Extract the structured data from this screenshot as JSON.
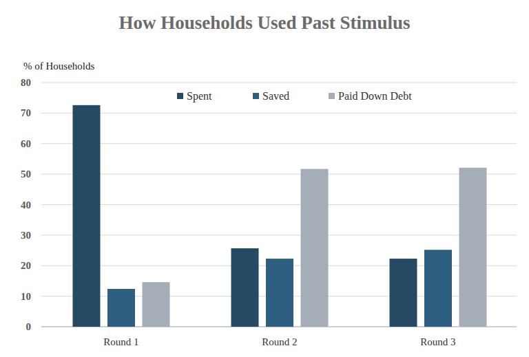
{
  "chart_data": {
    "type": "bar",
    "title": "How Households Used Past Stimulus",
    "y_label": "% of Households",
    "categories": [
      "Round 1",
      "Round 2",
      "Round 3"
    ],
    "series": [
      {
        "name": "Spent",
        "color": "#264a63",
        "values": [
          72.6,
          25.7,
          22.3
        ]
      },
      {
        "name": "Saved",
        "color": "#2e5f80",
        "values": [
          12.4,
          22.3,
          25.2
        ]
      },
      {
        "name": "Paid Down Debt",
        "color": "#a5adb8",
        "values": [
          14.6,
          51.7,
          52.1
        ]
      }
    ],
    "ylim": [
      0,
      80
    ],
    "yticks": [
      0,
      10,
      20,
      30,
      40,
      50,
      60,
      70,
      80
    ],
    "grid": true,
    "legend": "top"
  }
}
